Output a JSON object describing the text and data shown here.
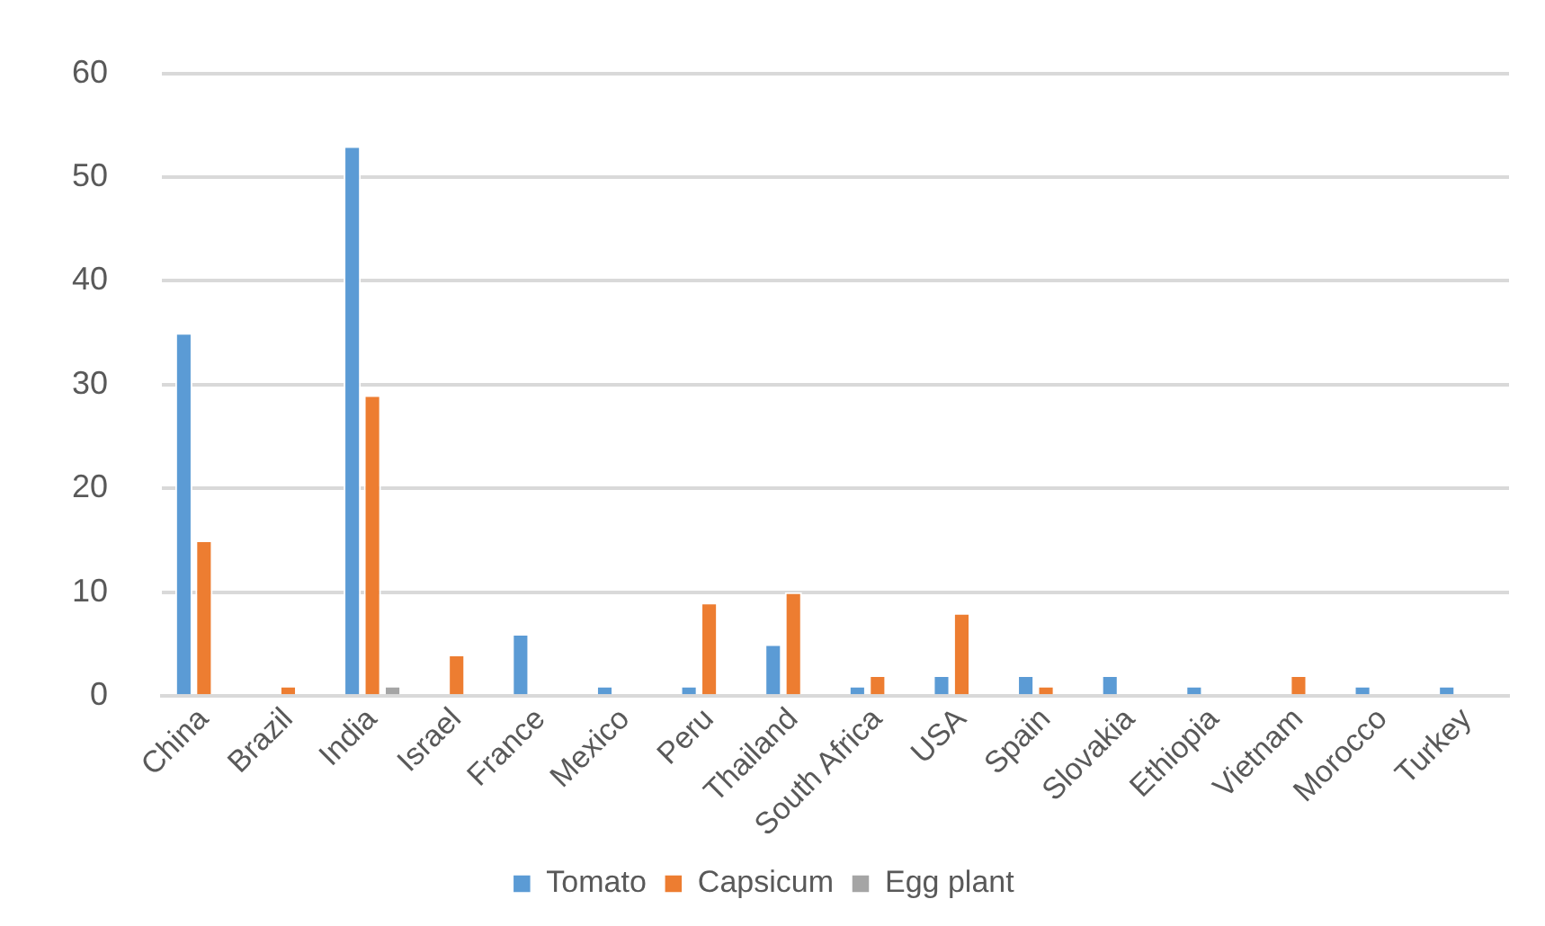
{
  "chart_data": {
    "type": "bar",
    "categories": [
      "China",
      "Brazil",
      "India",
      "Israel",
      "France",
      "Mexico",
      "Peru",
      "Thailand",
      "South Africa",
      "USA",
      "Spain",
      "Slovakia",
      "Ethiopia",
      "Vietnam",
      "Morocco",
      "Turkey"
    ],
    "series": [
      {
        "name": "Tomato",
        "color": "#5b9bd5",
        "values": [
          35,
          0,
          53,
          0,
          6,
          1,
          1,
          5,
          1,
          2,
          2,
          2,
          1,
          0,
          1,
          1
        ]
      },
      {
        "name": "Capsicum",
        "color": "#ed7d31",
        "values": [
          15,
          1,
          29,
          4,
          0,
          0,
          9,
          10,
          2,
          8,
          1,
          0,
          0,
          2,
          0,
          0
        ]
      },
      {
        "name": "Egg plant",
        "color": "#a5a5a5",
        "values": [
          0,
          0,
          1,
          0,
          0,
          0,
          0,
          0,
          0,
          0,
          0,
          0,
          0,
          0,
          0,
          0
        ]
      }
    ],
    "ylim": [
      0,
      60
    ],
    "yticks": [
      0,
      10,
      20,
      30,
      40,
      50,
      60
    ],
    "grid": "y",
    "legend": "bottom"
  }
}
